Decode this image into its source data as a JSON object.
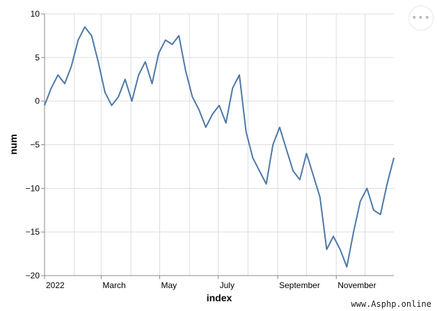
{
  "menu": {
    "icon_text": "•••"
  },
  "watermark": "www.Asphp.online",
  "chart_data": {
    "type": "line",
    "title": "",
    "xlabel": "index",
    "ylabel": "num",
    "x_ticks": [
      "2022",
      "March",
      "May",
      "July",
      "September",
      "November"
    ],
    "x_range": [
      "2022-01-01",
      "2022-12-31"
    ],
    "ylim": [
      -20,
      10
    ],
    "y_ticks": [
      10,
      5,
      0,
      -5,
      -10,
      -15,
      -20
    ],
    "grid": true,
    "line_color": "#4c78a8",
    "series": [
      {
        "x": [
          "2022-01-01",
          "2022-01-08",
          "2022-01-15",
          "2022-01-22",
          "2022-01-29",
          "2022-02-05",
          "2022-02-12",
          "2022-02-19",
          "2022-02-26",
          "2022-03-05",
          "2022-03-12",
          "2022-03-19",
          "2022-03-26",
          "2022-04-02",
          "2022-04-09",
          "2022-04-16",
          "2022-04-23",
          "2022-04-30",
          "2022-05-07",
          "2022-05-14",
          "2022-05-21",
          "2022-05-28",
          "2022-06-04",
          "2022-06-11",
          "2022-06-18",
          "2022-06-25",
          "2022-07-02",
          "2022-07-09",
          "2022-07-16",
          "2022-07-23",
          "2022-07-30",
          "2022-08-06",
          "2022-08-13",
          "2022-08-20",
          "2022-08-27",
          "2022-09-03",
          "2022-09-10",
          "2022-09-17",
          "2022-09-24",
          "2022-10-01",
          "2022-10-08",
          "2022-10-15",
          "2022-10-22",
          "2022-10-29",
          "2022-11-05",
          "2022-11-12",
          "2022-11-19",
          "2022-11-26",
          "2022-12-03",
          "2022-12-10",
          "2022-12-17",
          "2022-12-24",
          "2022-12-31"
        ],
        "values": [
          -0.5,
          1.5,
          3.0,
          2.0,
          4.0,
          7.0,
          8.5,
          7.5,
          4.5,
          1.0,
          -0.5,
          0.5,
          2.5,
          0.0,
          3.0,
          4.5,
          2.0,
          5.5,
          7.0,
          6.5,
          7.5,
          3.5,
          0.5,
          -1.0,
          -3.0,
          -1.5,
          -0.5,
          -2.5,
          1.5,
          3.0,
          -3.5,
          -6.5,
          -8.0,
          -9.5,
          -5.0,
          -3.0,
          -5.5,
          -8.0,
          -9.0,
          -6.0,
          -8.5,
          -11.0,
          -17.0,
          -15.5,
          -17.0,
          -19.0,
          -15.0,
          -11.5,
          -10.0,
          -12.5,
          -13.0,
          -9.5,
          -6.5
        ]
      }
    ]
  }
}
